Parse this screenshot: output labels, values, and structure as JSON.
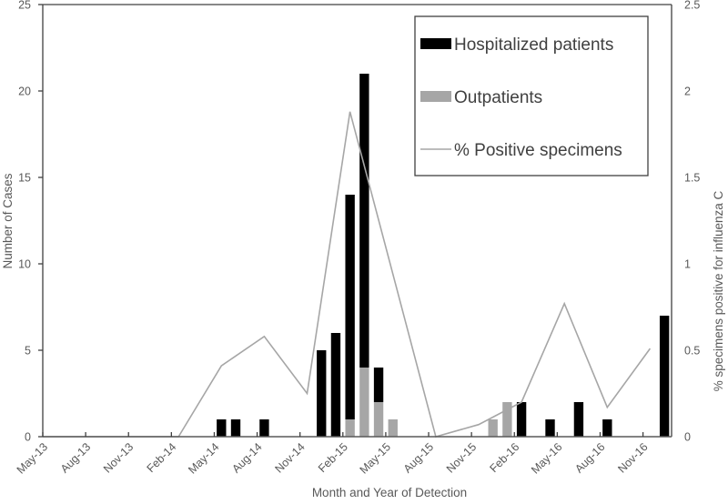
{
  "chart_data": {
    "type": "bar",
    "stacked": true,
    "title": "",
    "xlabel": "Month and Year of Detection",
    "ylabel": "Number of Cases",
    "y2label": "% specimens positive for influenza C",
    "ylim": [
      0,
      25
    ],
    "y2lim": [
      0,
      2.5
    ],
    "yticks": [
      "0",
      "5",
      "10",
      "15",
      "20",
      "25"
    ],
    "y2ticks": [
      "0",
      "0.5",
      "1",
      "1.5",
      "2",
      "2.5"
    ],
    "categories": [
      "May-13",
      "Jun-13",
      "Jul-13",
      "Aug-13",
      "Sep-13",
      "Oct-13",
      "Nov-13",
      "Dec-13",
      "Jan-14",
      "Feb-14",
      "Mar-14",
      "Apr-14",
      "May-14",
      "Jun-14",
      "Jul-14",
      "Aug-14",
      "Sep-14",
      "Oct-14",
      "Nov-14",
      "Dec-14",
      "Jan-15",
      "Feb-15",
      "Mar-15",
      "Apr-15",
      "May-15",
      "Jun-15",
      "Jul-15",
      "Aug-15",
      "Sep-15",
      "Oct-15",
      "Nov-15",
      "Dec-15",
      "Jan-16",
      "Feb-16",
      "Mar-16",
      "Apr-16",
      "May-16",
      "Jun-16",
      "Jul-16",
      "Aug-16",
      "Sep-16",
      "Oct-16",
      "Nov-16",
      "Dec-16"
    ],
    "xtick_labels": [
      "May-13",
      "Aug-13",
      "Nov-13",
      "Feb-14",
      "May-14",
      "Aug-14",
      "Nov-14",
      "Feb-15",
      "May-15",
      "Aug-15",
      "Nov-15",
      "Feb-16",
      "May-16",
      "Aug-16",
      "Nov-16"
    ],
    "series": [
      {
        "name": "Hospitalized patients",
        "kind": "bar",
        "color": "#000000",
        "values": [
          0,
          0,
          0,
          0,
          0,
          0,
          0,
          0,
          0,
          0,
          0,
          0,
          1,
          1,
          0,
          1,
          0,
          0,
          0,
          5,
          6,
          13,
          17,
          2,
          0,
          0,
          0,
          0,
          0,
          0,
          0,
          0,
          0,
          2,
          0,
          1,
          0,
          2,
          0,
          1,
          0,
          0,
          0,
          7
        ]
      },
      {
        "name": "Outpatients",
        "kind": "bar",
        "color": "#a6a6a6",
        "values": [
          0,
          0,
          0,
          0,
          0,
          0,
          0,
          0,
          0,
          0,
          0,
          0,
          0,
          0,
          0,
          0,
          0,
          0,
          0,
          0,
          0,
          1,
          4,
          2,
          1,
          0,
          0,
          0,
          0,
          0,
          0,
          1,
          2,
          0,
          0,
          0,
          0,
          0,
          0,
          0,
          0,
          0,
          0,
          0
        ]
      },
      {
        "name": "% Positive specimens",
        "kind": "line",
        "axis": "right",
        "color": "#a6a6a6",
        "points": [
          {
            "x": 0,
            "y": 0
          },
          {
            "x": 9.5,
            "y": 0
          },
          {
            "x": 12.5,
            "y": 0.41
          },
          {
            "x": 15.5,
            "y": 0.58
          },
          {
            "x": 18.5,
            "y": 0.25
          },
          {
            "x": 21.5,
            "y": 1.88
          },
          {
            "x": 24.5,
            "y": 0.94
          },
          {
            "x": 27.5,
            "y": 0
          },
          {
            "x": 30.5,
            "y": 0.07
          },
          {
            "x": 33.5,
            "y": 0.2
          },
          {
            "x": 36.5,
            "y": 0.77
          },
          {
            "x": 39.5,
            "y": 0.17
          },
          {
            "x": 42.5,
            "y": 0.51
          }
        ]
      }
    ],
    "legend": {
      "position": "top-right",
      "entries": [
        "Hospitalized patients",
        "Outpatients",
        "% Positive specimens"
      ]
    },
    "grid": false
  }
}
